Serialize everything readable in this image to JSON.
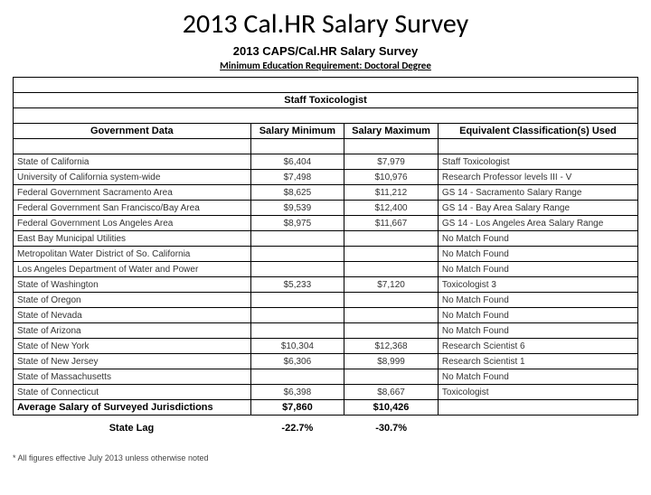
{
  "main_title": "2013 Cal.HR Salary Survey",
  "sub_title": "2013 CAPS/Cal.HR Salary Survey",
  "req_line": "Minimum Education Requirement: Doctoral Degree",
  "section_header": "Staff Toxicologist",
  "columns": [
    "Government Data",
    "Salary Minimum",
    "Salary Maximum",
    "Equivalent Classification(s) Used"
  ],
  "rows": [
    {
      "gov": "State of California",
      "min": "$6,404",
      "max": "$7,979",
      "cls": "Staff Toxicologist"
    },
    {
      "gov": "University of California system-wide",
      "min": "$7,498",
      "max": "$10,976",
      "cls": "Research Professor levels III - V"
    },
    {
      "gov": "Federal Government Sacramento Area",
      "min": "$8,625",
      "max": "$11,212",
      "cls": "GS 14 - Sacramento Salary Range"
    },
    {
      "gov": "Federal Government San Francisco/Bay Area",
      "min": "$9,539",
      "max": "$12,400",
      "cls": "GS 14 - Bay Area Salary Range"
    },
    {
      "gov": "Federal Government Los Angeles Area",
      "min": "$8,975",
      "max": "$11,667",
      "cls": "GS 14 - Los Angeles Area Salary Range"
    },
    {
      "gov": "East Bay Municipal Utilities",
      "min": "",
      "max": "",
      "cls": "No Match Found"
    },
    {
      "gov": "Metropolitan Water District of So. California",
      "min": "",
      "max": "",
      "cls": "No Match Found"
    },
    {
      "gov": "Los Angeles Department of Water and Power",
      "min": "",
      "max": "",
      "cls": "No Match Found"
    },
    {
      "gov": "State of Washington",
      "min": "$5,233",
      "max": "$7,120",
      "cls": "Toxicologist 3"
    },
    {
      "gov": "State of Oregon",
      "min": "",
      "max": "",
      "cls": "No Match Found"
    },
    {
      "gov": "State of Nevada",
      "min": "",
      "max": "",
      "cls": "No Match Found"
    },
    {
      "gov": "State of Arizona",
      "min": "",
      "max": "",
      "cls": "No Match Found"
    },
    {
      "gov": "State of New York",
      "min": "$10,304",
      "max": "$12,368",
      "cls": "Research Scientist 6"
    },
    {
      "gov": "State of New Jersey",
      "min": "$6,306",
      "max": "$8,999",
      "cls": "Research Scientist 1"
    },
    {
      "gov": "State of Massachusetts",
      "min": "",
      "max": "",
      "cls": "No Match Found"
    },
    {
      "gov": "State of Connecticut",
      "min": "$6,398",
      "max": "$8,667",
      "cls": "Toxicologist"
    }
  ],
  "avg_row": {
    "label": "Average Salary of Surveyed Jurisdictions",
    "min": "$7,860",
    "max": "$10,426"
  },
  "lag": {
    "label": "State Lag",
    "min": "-22.7%",
    "max": "-30.7%"
  },
  "footnote": "*   All figures effective July 2013 unless otherwise noted"
}
